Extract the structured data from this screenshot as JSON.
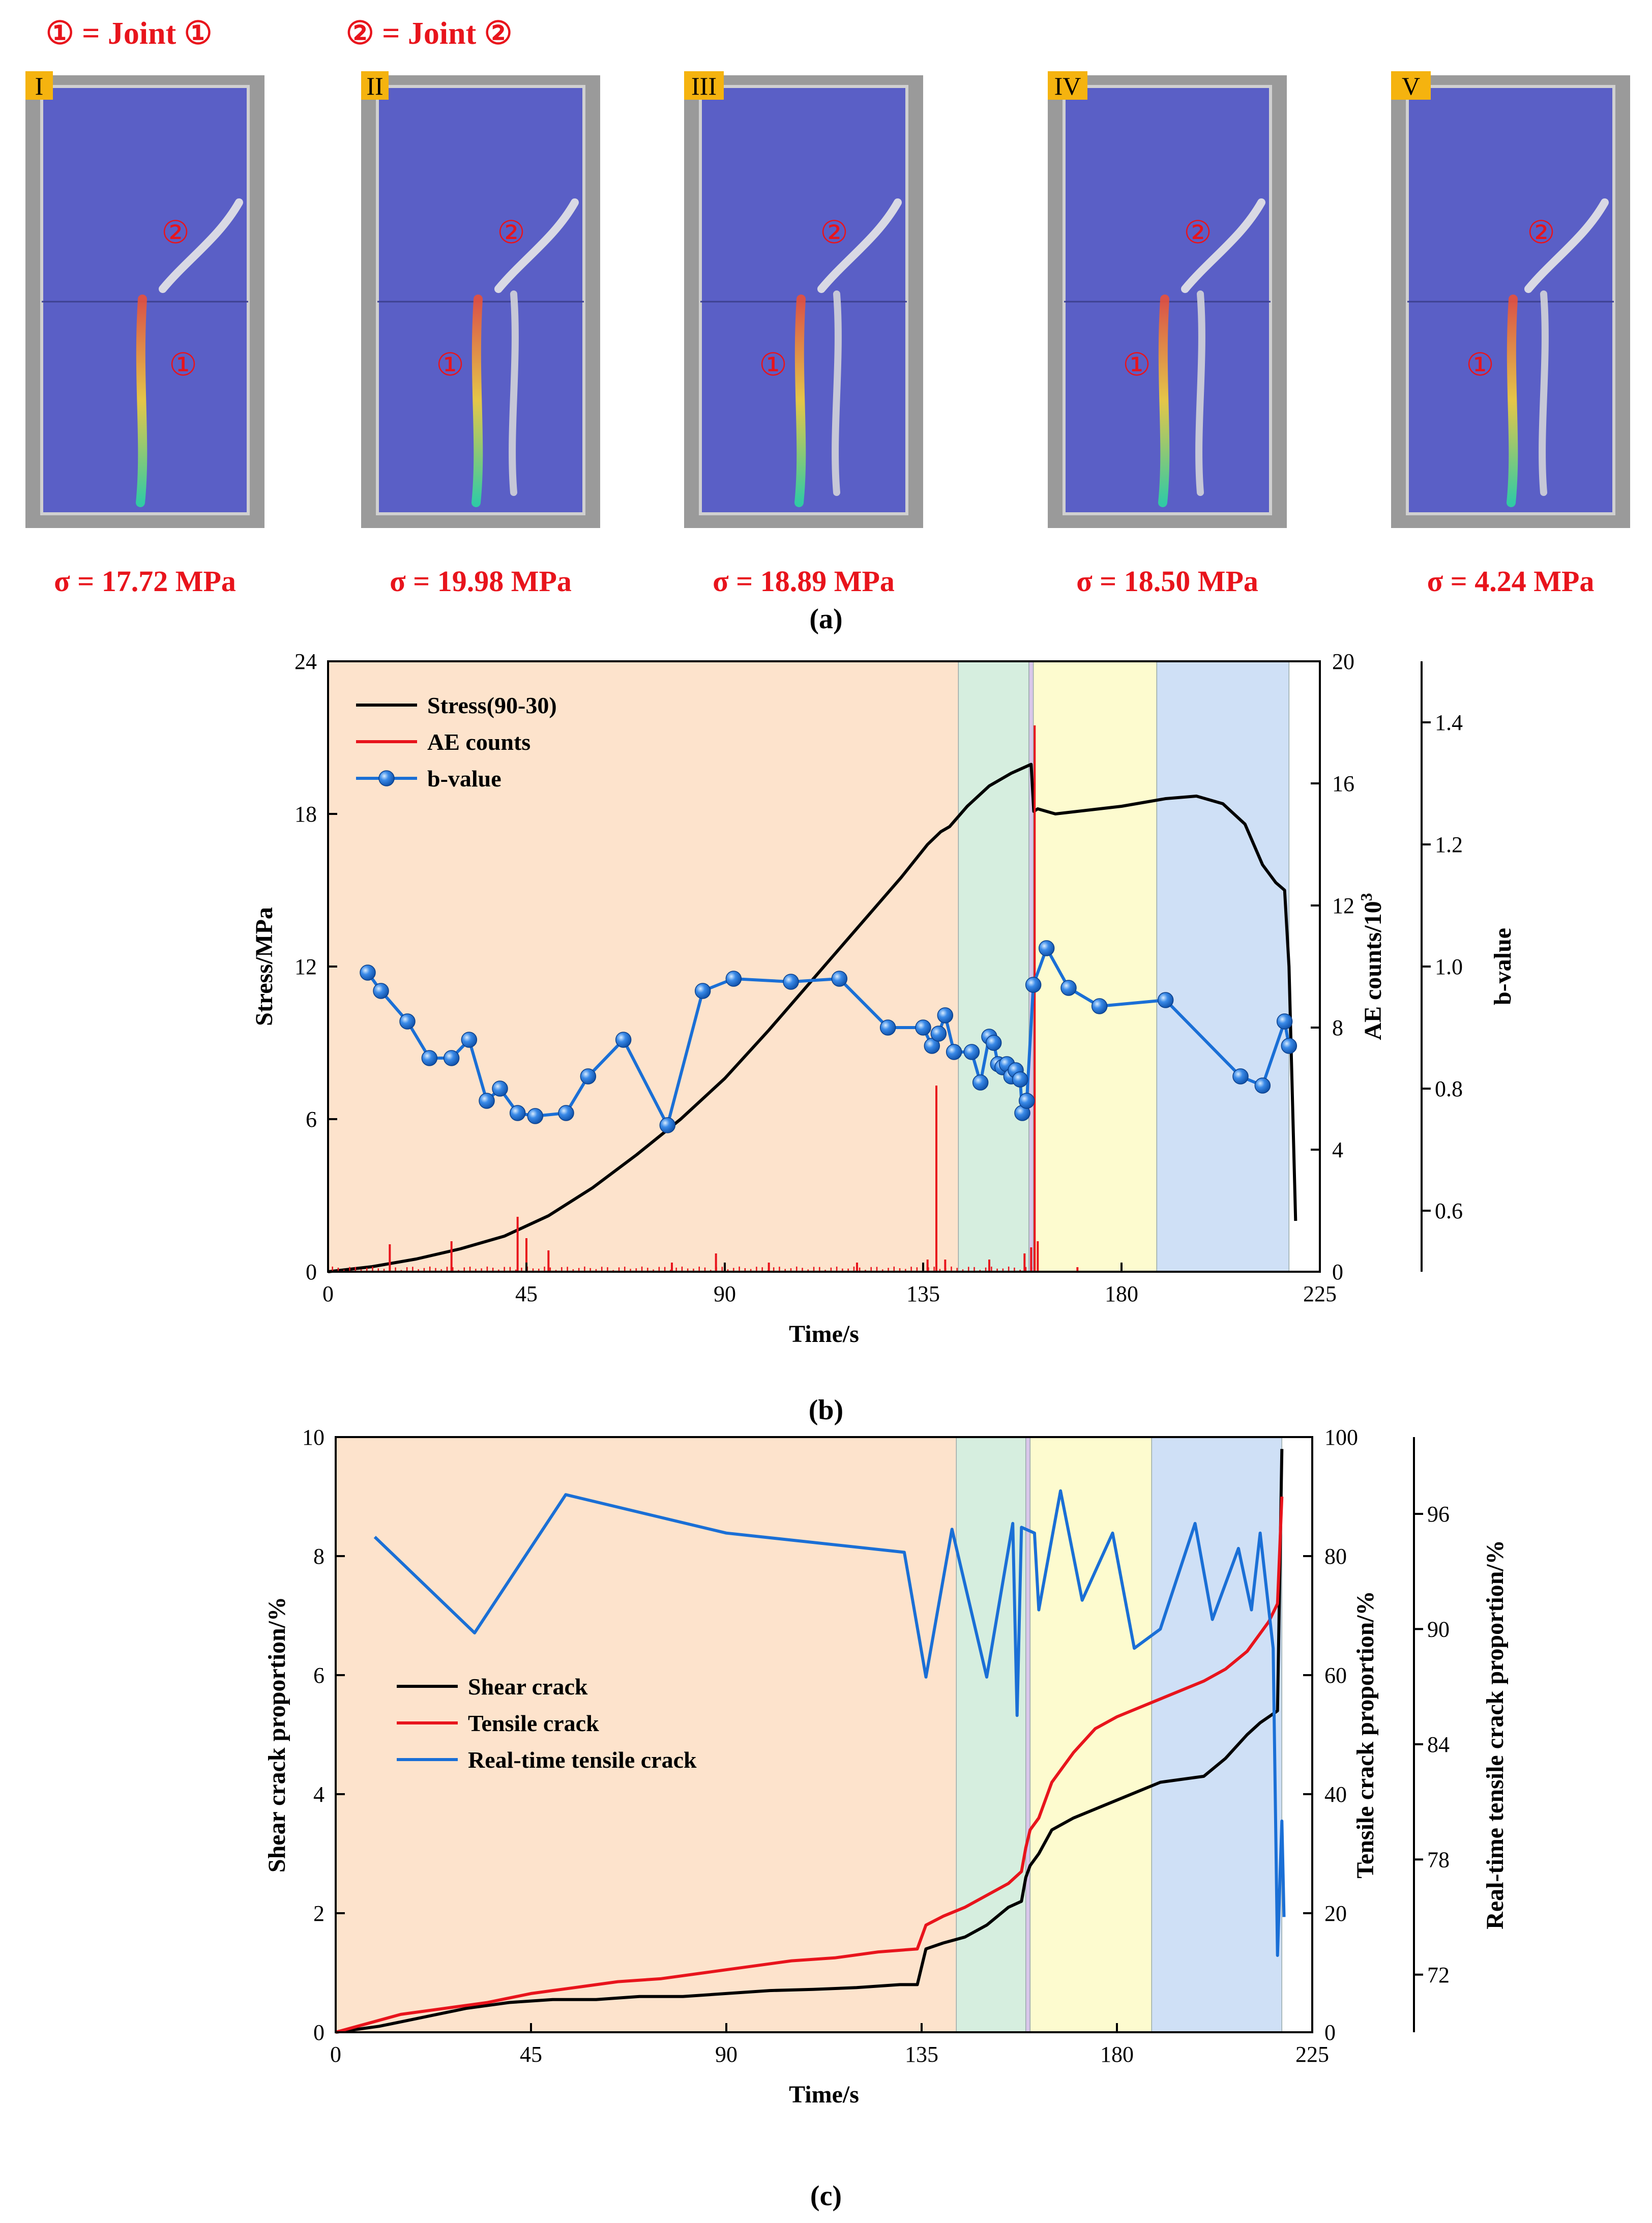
{
  "figure_a": {
    "joint_labels": [
      "① = Joint ①",
      "② = Joint ②"
    ],
    "panels": [
      {
        "badge": "I",
        "stress": "σ = 17.72 MPa",
        "m1": "①",
        "m2": "②"
      },
      {
        "badge": "II",
        "stress": "σ = 19.98 MPa",
        "m1": "①",
        "m2": "②"
      },
      {
        "badge": "III",
        "stress": "σ = 18.89 MPa",
        "m1": "①",
        "m2": "②"
      },
      {
        "badge": "IV",
        "stress": "σ = 18.50 MPa",
        "m1": "①",
        "m2": "②"
      },
      {
        "badge": "V",
        "stress": "σ = 4.24 MPa",
        "m1": "①",
        "m2": "②"
      }
    ],
    "caption": "(a)"
  },
  "colors": {
    "stage1": "#fde3cc",
    "stage2": "#d6eedf",
    "stage3": "#fdfbcf",
    "stage4": "#cfe0f6",
    "red": "#e8141c",
    "blue": "#1a6fd6",
    "black": "#000000",
    "specimen": "#5a5fc6"
  },
  "chart_data": [
    {
      "id": "b",
      "type": "line",
      "caption": "(b)",
      "xlabel": "Time/s",
      "ylabel_left": "Stress/MPa",
      "ylabel_right1": "AE counts/10",
      "ylabel_right1_sup": "3",
      "ylabel_right2": "b-value",
      "xlim": [
        0,
        225
      ],
      "ylim_left": [
        0,
        24
      ],
      "ylim_right1": [
        0,
        20
      ],
      "ylim_right2": [
        0.5,
        1.5
      ],
      "xticks": [
        0,
        45,
        90,
        135,
        180,
        225
      ],
      "yticks_left": [
        0,
        6,
        12,
        18,
        24
      ],
      "yticks_right1": [
        0,
        4,
        8,
        12,
        16,
        20
      ],
      "yticks_right2": [
        0.6,
        0.8,
        1.0,
        1.2,
        1.4
      ],
      "stage_bounds": [
        0,
        143,
        159,
        160,
        188,
        218
      ],
      "legend": [
        "Stress(90-30)",
        "AE counts",
        "b-value"
      ],
      "series": [
        {
          "name": "Stress(90-30)",
          "axis": "left",
          "color": "#000000",
          "x": [
            0,
            10,
            20,
            30,
            40,
            50,
            60,
            70,
            80,
            90,
            100,
            110,
            120,
            130,
            136,
            139,
            141,
            145,
            150,
            155,
            159.5,
            160.1,
            161,
            165,
            170,
            180,
            190,
            197,
            203,
            208,
            212,
            215,
            217,
            218,
            219.5
          ],
          "y": [
            0,
            0.2,
            0.5,
            0.9,
            1.4,
            2.2,
            3.3,
            4.6,
            6.0,
            7.6,
            9.5,
            11.5,
            13.5,
            15.5,
            16.8,
            17.3,
            17.5,
            18.3,
            19.1,
            19.6,
            19.95,
            18.1,
            18.2,
            18.0,
            18.1,
            18.3,
            18.6,
            18.7,
            18.4,
            17.6,
            16.0,
            15.3,
            15.0,
            12.0,
            2.0
          ]
        },
        {
          "name": "AE counts",
          "axis": "right1",
          "color": "#e8141c",
          "x": [
            14,
            28,
            43,
            45,
            50,
            78,
            88,
            100,
            120,
            136,
            138,
            140,
            150,
            158,
            159.5,
            160.3,
            161,
            170
          ],
          "y": [
            0.9,
            1.0,
            1.8,
            1.1,
            0.7,
            0.3,
            0.6,
            0.3,
            0.3,
            0.4,
            6.1,
            0.4,
            0.4,
            0.6,
            0.8,
            17.9,
            1.0,
            0.15
          ]
        },
        {
          "name": "b-value",
          "axis": "right2",
          "color": "#1a6fd6",
          "x": [
            9,
            12,
            18,
            23,
            28,
            32,
            36,
            39,
            43,
            47,
            54,
            59,
            67,
            77,
            85,
            92,
            105,
            116,
            127,
            135,
            137,
            138.5,
            140,
            142,
            146,
            148,
            150,
            151,
            152,
            153,
            154,
            155,
            156,
            157,
            157.5,
            158.5,
            160,
            163,
            168,
            175,
            190,
            207,
            212,
            217,
            218
          ],
          "y": [
            0.99,
            0.96,
            0.91,
            0.85,
            0.85,
            0.88,
            0.78,
            0.8,
            0.76,
            0.755,
            0.76,
            0.82,
            0.88,
            0.74,
            0.96,
            0.98,
            0.975,
            0.98,
            0.9,
            0.9,
            0.87,
            0.89,
            0.92,
            0.86,
            0.86,
            0.81,
            0.885,
            0.875,
            0.84,
            0.835,
            0.84,
            0.82,
            0.83,
            0.815,
            0.76,
            0.78,
            0.97,
            1.03,
            0.965,
            0.935,
            0.945,
            0.82,
            0.805,
            0.91,
            0.87
          ]
        }
      ]
    },
    {
      "id": "c",
      "type": "line",
      "caption": "(c)",
      "xlabel": "Time/s",
      "ylabel_left": "Shear crack proportion/%",
      "ylabel_right1": "Tensile crack proportion/%",
      "ylabel_right2": "Real-time tensile crack proportion/%",
      "xlim": [
        0,
        225
      ],
      "ylim_left": [
        0,
        10
      ],
      "ylim_right1": [
        0,
        100
      ],
      "ylim_right2": [
        69,
        100
      ],
      "xticks": [
        0,
        45,
        90,
        135,
        180,
        225
      ],
      "yticks_left": [
        0,
        2,
        4,
        6,
        8,
        10
      ],
      "yticks_right1": [
        0,
        20,
        40,
        60,
        80,
        100
      ],
      "yticks_right2": [
        72,
        78,
        84,
        90,
        96
      ],
      "stage_bounds": [
        0,
        143,
        159,
        160,
        188,
        218
      ],
      "legend": [
        "Shear crack",
        "Tensile crack",
        "Real-time tensile crack"
      ],
      "series": [
        {
          "name": "Shear crack",
          "axis": "left",
          "color": "#000000",
          "x": [
            0,
            10,
            20,
            30,
            40,
            50,
            60,
            70,
            80,
            90,
            100,
            110,
            120,
            130,
            134,
            135,
            136,
            140,
            145,
            150,
            155,
            158,
            159,
            160,
            162,
            165,
            170,
            180,
            190,
            200,
            205,
            210,
            213,
            215,
            217,
            218
          ],
          "y": [
            0,
            0.1,
            0.25,
            0.4,
            0.5,
            0.55,
            0.55,
            0.6,
            0.6,
            0.65,
            0.7,
            0.72,
            0.75,
            0.8,
            0.8,
            1.1,
            1.4,
            1.5,
            1.6,
            1.8,
            2.1,
            2.2,
            2.6,
            2.8,
            3.0,
            3.4,
            3.6,
            3.9,
            4.2,
            4.3,
            4.6,
            5.0,
            5.2,
            5.3,
            5.4,
            9.8
          ]
        },
        {
          "name": "Tensile crack",
          "axis": "right1",
          "color": "#e8141c",
          "x": [
            0,
            5,
            15,
            25,
            35,
            45,
            55,
            65,
            75,
            85,
            95,
            105,
            115,
            125,
            134,
            135,
            136,
            140,
            145,
            150,
            155,
            158,
            159,
            160,
            162,
            165,
            170,
            175,
            180,
            190,
            200,
            205,
            210,
            213,
            215,
            217,
            218
          ],
          "y": [
            0,
            1,
            3,
            4,
            5,
            6.5,
            7.5,
            8.5,
            9,
            10,
            11,
            12,
            12.5,
            13.5,
            14,
            16,
            18,
            19.5,
            21,
            23,
            25,
            27,
            31,
            34,
            36,
            42,
            47,
            51,
            53,
            56,
            59,
            61,
            64,
            67,
            69,
            72,
            90
          ]
        },
        {
          "name": "Real-time tensile crack",
          "axis": "right2",
          "color": "#1a6fd6",
          "x": [
            9,
            32,
            53,
            90,
            131,
            136,
            142,
            150,
            156,
            157,
            158,
            161,
            162,
            167,
            172,
            179,
            184,
            190,
            198,
            202,
            208,
            211,
            213,
            216,
            217,
            218,
            218.5
          ],
          "y": [
            94.8,
            89.8,
            97,
            95,
            94,
            87.5,
            95.2,
            87.5,
            95.5,
            85.5,
            95.3,
            95,
            91,
            97.2,
            91.5,
            95,
            89,
            90,
            95.5,
            90.5,
            94.2,
            91,
            95,
            89,
            73,
            80,
            75
          ]
        }
      ]
    }
  ]
}
